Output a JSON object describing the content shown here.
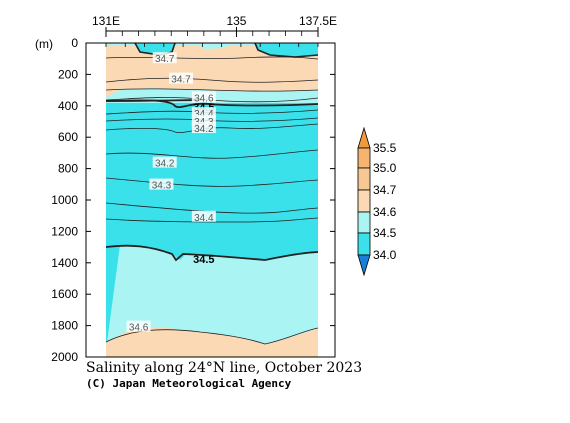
{
  "chart_data": {
    "type": "contour",
    "title": "Salinity along 24°N line, October 2023",
    "credit": "(C) Japan Meteorological Agency",
    "x_axis": {
      "labels": [
        "131E",
        "135",
        "137.5E"
      ],
      "values": [
        131,
        135,
        137.5
      ],
      "range": [
        131,
        137.5
      ]
    },
    "y_axis": {
      "unit": "(m)",
      "range": [
        0,
        2000
      ],
      "inverted": true,
      "ticks": [
        0,
        200,
        400,
        600,
        800,
        1000,
        1200,
        1400,
        1600,
        1800,
        2000
      ]
    },
    "colorbar": {
      "levels": [
        "35.5",
        "35.0",
        "34.7",
        "34.6",
        "34.5",
        "34.0"
      ],
      "colors": [
        "#f5b470",
        "#f8c894",
        "#fbd9b5",
        "#aaf4f4",
        "#3ae0ea",
        "#1a7fd8"
      ]
    },
    "contour_labels": [
      {
        "value": "34.7",
        "lon": 132.8,
        "depth": 100
      },
      {
        "value": "34.7",
        "lon": 133.3,
        "depth": 230
      },
      {
        "value": "34.6",
        "lon": 134.0,
        "depth": 350
      },
      {
        "value": "34.5",
        "lon": 134.0,
        "depth": 410,
        "bold": true
      },
      {
        "value": "34.4",
        "lon": 134.0,
        "depth": 450
      },
      {
        "value": "34.3",
        "lon": 134.0,
        "depth": 500
      },
      {
        "value": "34.2",
        "lon": 134.0,
        "depth": 545
      },
      {
        "value": "34.2",
        "lon": 132.8,
        "depth": 765
      },
      {
        "value": "34.3",
        "lon": 132.7,
        "depth": 905
      },
      {
        "value": "34.4",
        "lon": 134.0,
        "depth": 1110
      },
      {
        "value": "34.5",
        "lon": 134.0,
        "depth": 1380,
        "bold": true
      },
      {
        "value": "34.6",
        "lon": 132.0,
        "depth": 1810
      }
    ]
  }
}
